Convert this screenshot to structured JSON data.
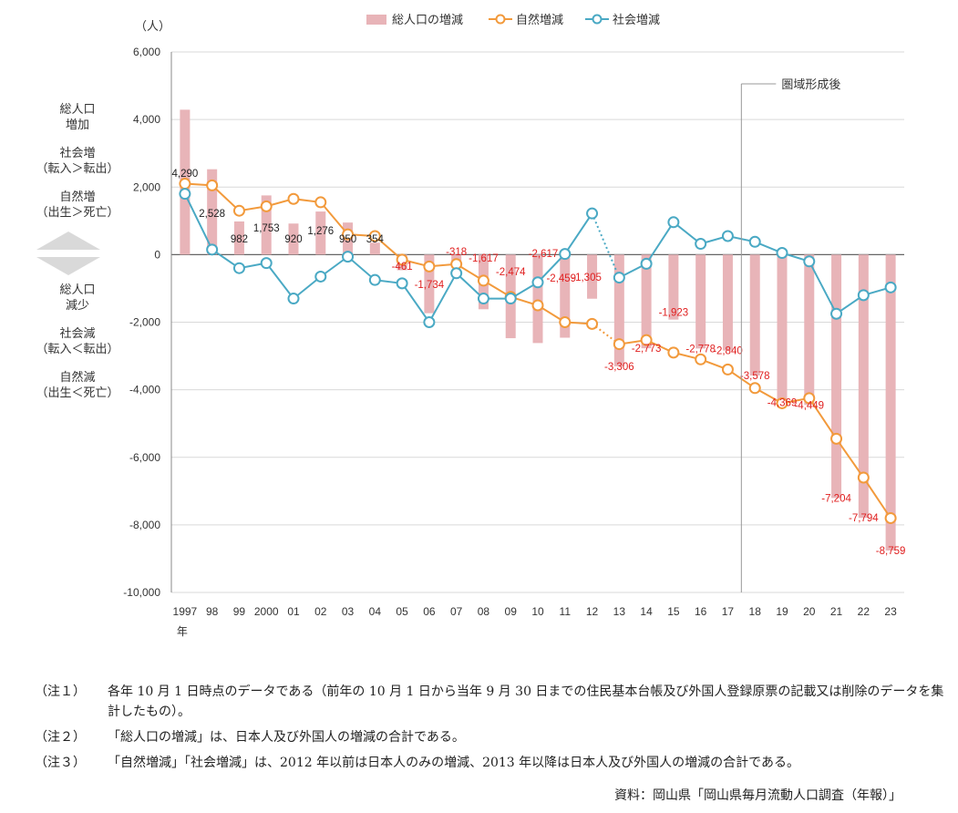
{
  "chart_data": {
    "type": "bar+line",
    "unit_label": "（人）",
    "x_suffix": "年",
    "categories": [
      "1997",
      "98",
      "99",
      "2000",
      "01",
      "02",
      "03",
      "04",
      "05",
      "06",
      "07",
      "08",
      "09",
      "10",
      "11",
      "12",
      "13",
      "14",
      "15",
      "16",
      "17",
      "18",
      "19",
      "20",
      "21",
      "22",
      "23"
    ],
    "ylim": [
      -10000,
      6000
    ],
    "yticks": [
      6000,
      4000,
      2000,
      0,
      -2000,
      -4000,
      -6000,
      -8000,
      -10000
    ],
    "ytick_labels": [
      "6,000",
      "4,000",
      "2,000",
      "0",
      "-2,000",
      "-4,000",
      "-6,000",
      "-8,000",
      "-10,000"
    ],
    "legend": [
      "総人口の増減",
      "自然増減",
      "社会増減"
    ],
    "legend_position": "top-center",
    "series": [
      {
        "name": "総人口の増減",
        "kind": "bar",
        "color": "#e8b4b8",
        "values": [
          4290,
          2528,
          982,
          1753,
          920,
          1276,
          950,
          354,
          -461,
          -1734,
          -318,
          -1617,
          -2474,
          -2617,
          -2459,
          -1305,
          -3306,
          -2773,
          -1923,
          -2778,
          -2840,
          -3578,
          -4369,
          -4449,
          -7204,
          -7794,
          -8759
        ],
        "labels": [
          "4,290",
          "2,528",
          "982",
          "1,753",
          "920",
          "1,276",
          "950",
          "354",
          "-461",
          "-1,734",
          "-318",
          "-1,617",
          "-2,474",
          "-2,617",
          "-2,459",
          "-1,305",
          "-3,306",
          "-2,773",
          "-1,923",
          "-2,778",
          "-2,840",
          "-3,578",
          "-4,369",
          "-4,449",
          "-7,204",
          "-7,794",
          "-8,759"
        ]
      },
      {
        "name": "自然増減",
        "kind": "line",
        "color": "#f29a3c",
        "values": [
          2100,
          2050,
          1300,
          1430,
          1650,
          1550,
          600,
          550,
          -150,
          -350,
          -280,
          -770,
          -1250,
          -1500,
          -2000,
          -2050,
          -2650,
          -2530,
          -2900,
          -3100,
          -3400,
          -3950,
          -4400,
          -4250,
          -5450,
          -6600,
          -7800
        ]
      },
      {
        "name": "社会増減",
        "kind": "line",
        "color": "#4aa9c4",
        "values": [
          1800,
          150,
          -400,
          -250,
          -1300,
          -650,
          -60,
          -750,
          -850,
          -2000,
          -550,
          -1300,
          -1300,
          -820,
          20,
          1220,
          -680,
          -270,
          960,
          320,
          550,
          380,
          50,
          -200,
          -1750,
          -1200,
          -970
        ]
      }
    ],
    "annotation": {
      "text": "圏域形成後",
      "after_category": "17"
    },
    "grid": true
  },
  "side_labels": {
    "increase_total": [
      "総人口",
      "増加"
    ],
    "increase_social": [
      "社会増",
      "（転入＞転出）"
    ],
    "increase_natural": [
      "自然増",
      "（出生＞死亡）"
    ],
    "decrease_total": [
      "総人口",
      "減少"
    ],
    "decrease_social": [
      "社会減",
      "（転入＜転出）"
    ],
    "decrease_natural": [
      "自然減",
      "（出生＜死亡）"
    ]
  },
  "notes": [
    {
      "label": "（注１）",
      "text": "各年 10 月 1 日時点のデータである（前年の 10 月 1 日から当年 9 月 30 日までの住民基本台帳及び外国人登録原票の記載又は削除のデータを集計したもの）。"
    },
    {
      "label": "（注２）",
      "text": "「総人口の増減」は、日本人及び外国人の増減の合計である。"
    },
    {
      "label": "（注３）",
      "text": "「自然増減」「社会増減」は、2012 年以前は日本人のみの増減、2013 年以降は日本人及び外国人の増減の合計である。"
    }
  ],
  "source": "資料：岡山県「岡山県毎月流動人口調査（年報）」"
}
